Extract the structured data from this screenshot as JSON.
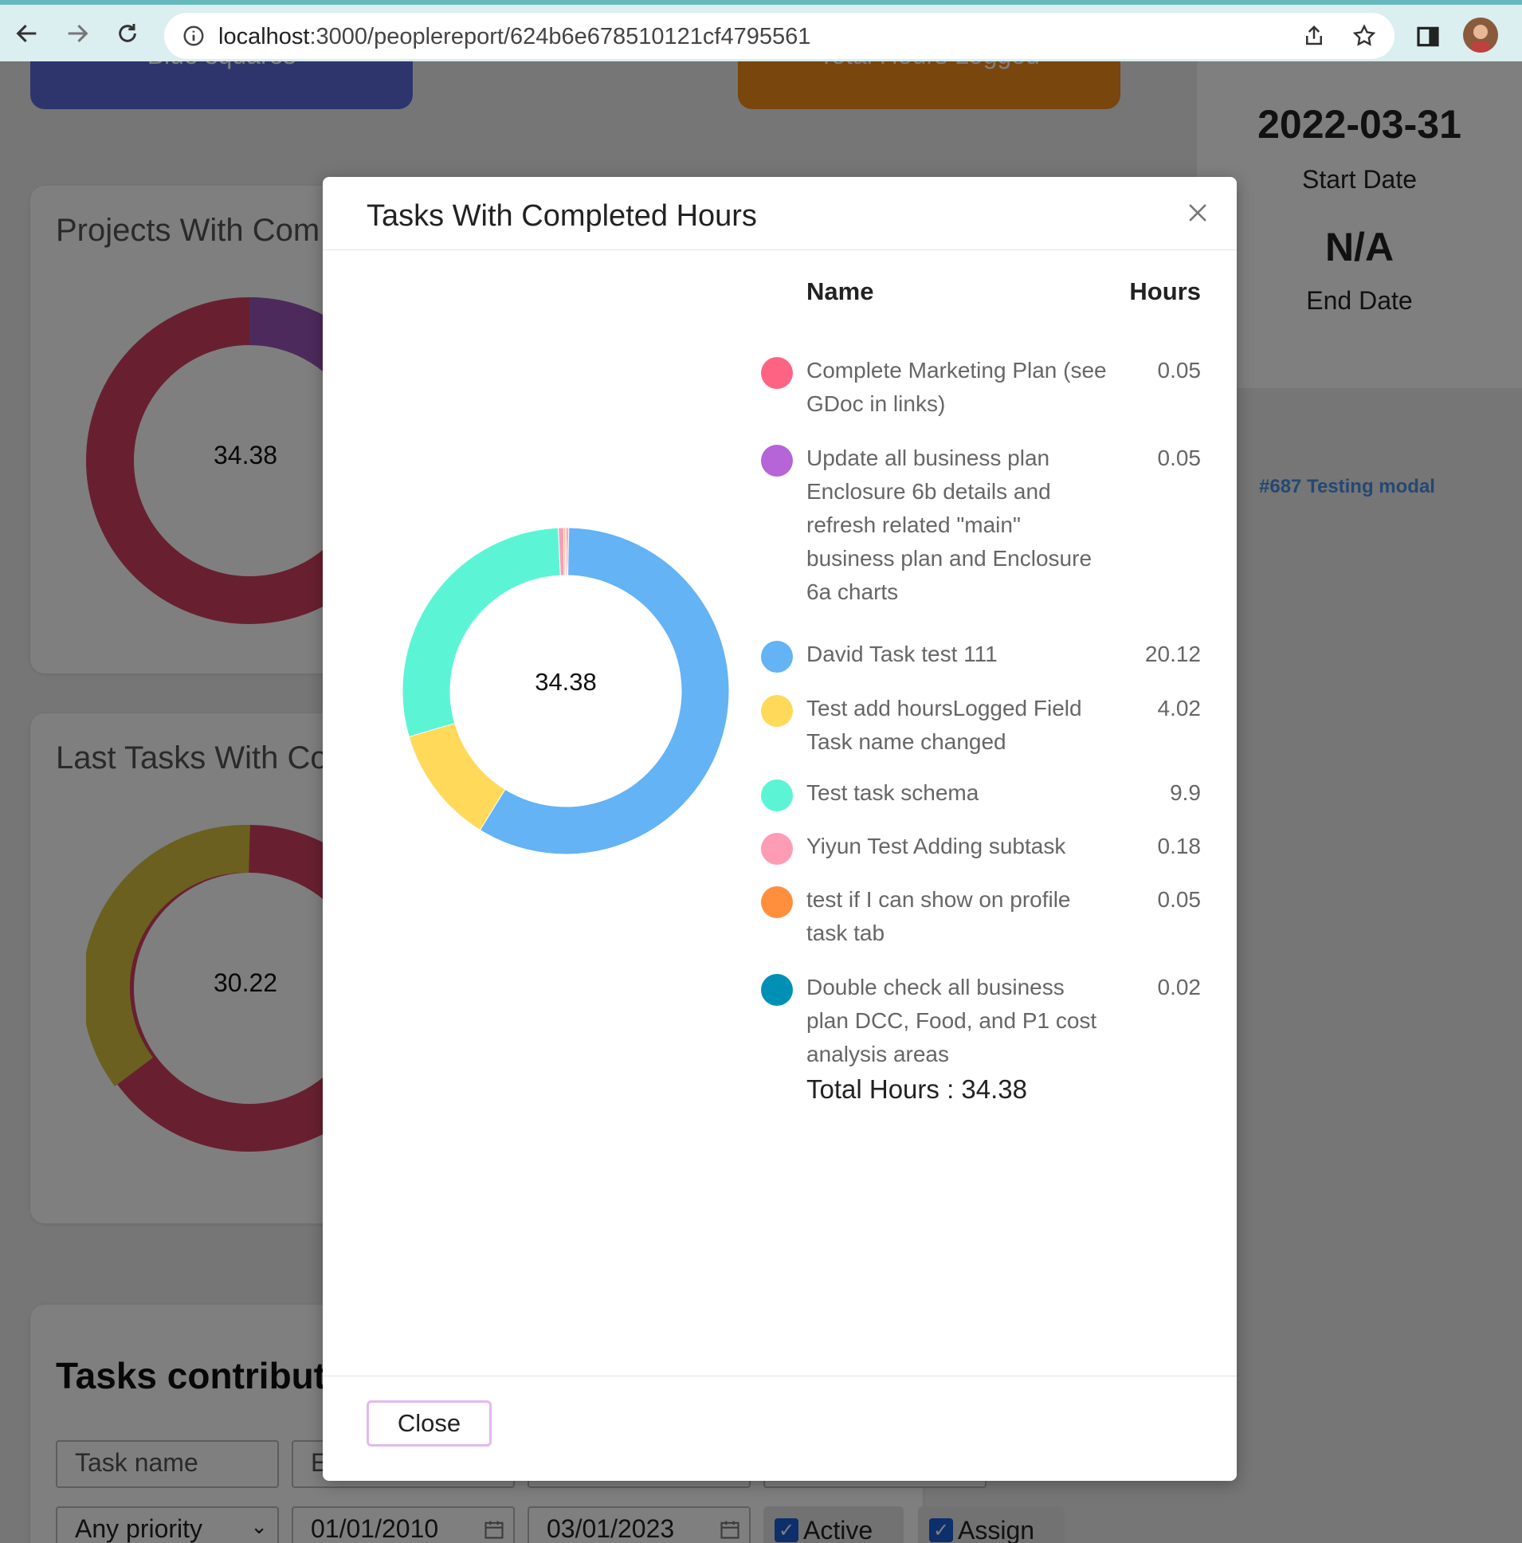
{
  "browser": {
    "url_host": "localhost",
    "url_path": ":3000/peoplereport/624b6e678510121cf4795561"
  },
  "background": {
    "stat_cards": [
      "Blue squares",
      "Total Hours Logged"
    ],
    "projects_card_title": "Projects With Com",
    "projects_center": "34.38",
    "last_tasks_card_title": "Last Tasks With Co",
    "last_tasks_center": "30.22",
    "tasks_contributed_title": "Tasks contribute",
    "right_panel": {
      "start_date": "2022-03-31",
      "start_label": "Start Date",
      "end_date": "N/A",
      "end_label": "End Date"
    },
    "link": "#687 Testing modal",
    "filters": {
      "task_name_placeholder": "Task name",
      "second_placeholder": "E",
      "priority": "Any priority",
      "date_from": "01/01/2010",
      "date_to": "03/01/2023",
      "active_label": "Active",
      "assign_label": "Assign"
    }
  },
  "modal": {
    "title": "Tasks With Completed Hours",
    "close_label": "Close",
    "legend_name_header": "Name",
    "legend_hours_header": "Hours",
    "total_label": "Total Hours : 34.38"
  },
  "chart_data": {
    "type": "pie",
    "donut": true,
    "center_label": "34.38",
    "slices": [
      {
        "name": "Complete Marketing Plan (see GDoc in links)",
        "value": 0.05,
        "color": "#ff6384"
      },
      {
        "name": "Update all business plan Enclosure 6b details and refresh related \"main\" business plan and Enclosure 6a charts",
        "value": 0.05,
        "color": "#b565d8"
      },
      {
        "name": "David Task test 111",
        "value": 20.12,
        "color": "#63b3f5"
      },
      {
        "name": "Test add hoursLogged Field Task name changed",
        "value": 4.02,
        "color": "#ffd95a"
      },
      {
        "name": "Test task schema",
        "value": 9.9,
        "color": "#5bf5d6"
      },
      {
        "name": "Yiyun Test Adding subtask",
        "value": 0.18,
        "color": "#ff9cb5"
      },
      {
        "name": "test if I can show on profile task tab",
        "value": 0.05,
        "color": "#ff8f3d"
      },
      {
        "name": "Double check all business plan DCC, Food, and P1 cost analysis areas",
        "value": 0.02,
        "color": "#0090b5"
      }
    ]
  }
}
